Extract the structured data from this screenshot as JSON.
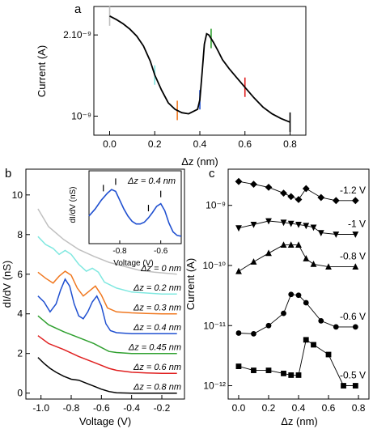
{
  "chart_data": [
    {
      "panel": "a",
      "type": "line",
      "xlabel": "Δz (nm)",
      "ylabel": "Current (A)",
      "xlim": [
        -0.07,
        0.87
      ],
      "ylim": [
        8.5e-10,
        2.55e-09
      ],
      "yscale": "log",
      "xticks": [
        0.0,
        0.2,
        0.4,
        0.6,
        0.8
      ],
      "xtick_labels": [
        "0.0",
        "0.2",
        "0.4",
        "0.6",
        "0.8"
      ],
      "yticks": [
        1e-09,
        2e-09
      ],
      "ytick_labels": [
        "10⁻⁹",
        "2.10⁻⁹"
      ],
      "series": [
        {
          "x": [
            0.0,
            0.03,
            0.06,
            0.09,
            0.12,
            0.15,
            0.18,
            0.2,
            0.23,
            0.26,
            0.29,
            0.32,
            0.35,
            0.37,
            0.39,
            0.4,
            0.41,
            0.42,
            0.43,
            0.44,
            0.46,
            0.48,
            0.5,
            0.53,
            0.56,
            0.6,
            0.64,
            0.68,
            0.72,
            0.76,
            0.8
          ],
          "values": [
            2.35e-09,
            2.28e-09,
            2.2e-09,
            2.1e-09,
            1.98e-09,
            1.82e-09,
            1.6e-09,
            1.42e-09,
            1.25e-09,
            1.12e-09,
            1.06e-09,
            1.03e-09,
            1.02e-09,
            1.04e-09,
            1.06e-09,
            1.15e-09,
            1.45e-09,
            1.85e-09,
            2.02e-09,
            2e-09,
            1.88e-09,
            1.75e-09,
            1.62e-09,
            1.5e-09,
            1.4e-09,
            1.28e-09,
            1.17e-09,
            1.08e-09,
            1.02e-09,
            9.8e-10,
            9.5e-10
          ]
        }
      ],
      "markers": [
        {
          "x": 0.0,
          "color": "#bdbdbd"
        },
        {
          "x": 0.2,
          "color": "#7fe3df"
        },
        {
          "x": 0.3,
          "color": "#f07820"
        },
        {
          "x": 0.4,
          "color": "#2050d0"
        },
        {
          "x": 0.45,
          "color": "#30a030"
        },
        {
          "x": 0.6,
          "color": "#e02020"
        },
        {
          "x": 0.8,
          "color": "#000000"
        }
      ]
    },
    {
      "panel": "b",
      "type": "line",
      "xlabel": "Voltage (V)",
      "ylabel": "dI/dV (nS)",
      "xlim": [
        -1.1,
        -0.05
      ],
      "ylim": [
        -0.3,
        11.3
      ],
      "xticks": [
        -1.0,
        -0.8,
        -0.6,
        -0.4,
        -0.2
      ],
      "xtick_labels": [
        "-1.0",
        "-0.8",
        "-0.6",
        "-0.4",
        "-0.2"
      ],
      "yticks": [
        0,
        2,
        4,
        6,
        8,
        10
      ],
      "ytick_labels": [
        "0",
        "2",
        "4",
        "6",
        "8",
        "10"
      ],
      "series": [
        {
          "name": "Δz = 0 nm",
          "color": "#c0c0c0",
          "x": [
            -1.02,
            -0.95,
            -0.85,
            -0.75,
            -0.65,
            -0.55,
            -0.45,
            -0.35,
            -0.25,
            -0.1
          ],
          "values": [
            9.3,
            8.4,
            7.75,
            7.25,
            6.9,
            6.6,
            6.4,
            6.2,
            6.1,
            6.0
          ]
        },
        {
          "name": "Δz = 0.2 nm",
          "color": "#80e8e0",
          "x": [
            -1.02,
            -0.97,
            -0.92,
            -0.88,
            -0.84,
            -0.8,
            -0.75,
            -0.7,
            -0.66,
            -0.62,
            -0.58,
            -0.5,
            -0.4,
            -0.3,
            -0.2,
            -0.1
          ],
          "values": [
            7.9,
            7.5,
            7.3,
            7.0,
            7.2,
            7.0,
            6.5,
            6.15,
            6.3,
            6.1,
            5.6,
            5.3,
            5.1,
            5.05,
            5.0,
            5.0
          ]
        },
        {
          "name": "Δz = 0.3 nm",
          "color": "#f07820",
          "x": [
            -1.02,
            -0.97,
            -0.92,
            -0.88,
            -0.84,
            -0.8,
            -0.76,
            -0.72,
            -0.68,
            -0.64,
            -0.6,
            -0.56,
            -0.5,
            -0.4,
            -0.3,
            -0.2,
            -0.1
          ],
          "values": [
            6.1,
            5.8,
            5.55,
            5.9,
            6.15,
            5.95,
            5.3,
            4.9,
            5.15,
            5.4,
            4.95,
            4.3,
            4.1,
            4.05,
            4.02,
            4.0,
            4.0
          ]
        },
        {
          "name": "Δz = 0.4 nm",
          "color": "#2050d0",
          "x": [
            -1.02,
            -0.98,
            -0.94,
            -0.9,
            -0.87,
            -0.84,
            -0.81,
            -0.78,
            -0.75,
            -0.72,
            -0.69,
            -0.66,
            -0.63,
            -0.6,
            -0.57,
            -0.54,
            -0.5,
            -0.4,
            -0.3,
            -0.2,
            -0.1
          ],
          "values": [
            4.9,
            4.6,
            4.1,
            4.5,
            5.2,
            5.75,
            5.4,
            4.5,
            3.9,
            3.75,
            4.1,
            4.6,
            4.9,
            4.4,
            3.5,
            3.15,
            3.05,
            3.0,
            3.0,
            3.0,
            3.0
          ]
        },
        {
          "name": "Δz = 0.45 nm",
          "color": "#30a030",
          "x": [
            -1.02,
            -0.95,
            -0.85,
            -0.75,
            -0.65,
            -0.6,
            -0.55,
            -0.5,
            -0.4,
            -0.3,
            -0.2,
            -0.1
          ],
          "values": [
            3.9,
            3.45,
            3.1,
            2.8,
            2.5,
            2.3,
            2.1,
            2.05,
            2.0,
            2.0,
            2.0,
            2.0
          ]
        },
        {
          "name": "Δz = 0.6 nm",
          "color": "#e02020",
          "x": [
            -1.02,
            -0.95,
            -0.85,
            -0.75,
            -0.65,
            -0.55,
            -0.5,
            -0.4,
            -0.3,
            -0.2,
            -0.1
          ],
          "values": [
            2.9,
            2.5,
            2.2,
            1.85,
            1.55,
            1.25,
            1.15,
            1.05,
            1.02,
            1.0,
            1.0
          ]
        },
        {
          "name": "Δz = 0.8 nm",
          "color": "#000000",
          "x": [
            -1.02,
            -0.98,
            -0.94,
            -0.9,
            -0.85,
            -0.8,
            -0.75,
            -0.7,
            -0.65,
            -0.6,
            -0.55,
            -0.5,
            -0.4,
            -0.3,
            -0.2,
            -0.1
          ],
          "values": [
            1.8,
            1.5,
            1.25,
            1.05,
            0.85,
            0.7,
            0.65,
            0.5,
            0.35,
            0.2,
            0.08,
            0.02,
            0.0,
            0.0,
            0.0,
            0.0
          ]
        }
      ],
      "inset": {
        "type": "line",
        "annotation": "Δz = 0.4 nm",
        "xlabel": "Voltage (V)",
        "ylabel": "dI/dV (nS)",
        "xlim": [
          -0.95,
          -0.5
        ],
        "xticks": [
          -0.8,
          -0.6
        ],
        "xtick_labels": [
          "-0.8",
          "-0.6"
        ],
        "color": "#2050d0",
        "x": [
          -0.95,
          -0.92,
          -0.89,
          -0.86,
          -0.84,
          -0.82,
          -0.8,
          -0.78,
          -0.76,
          -0.74,
          -0.72,
          -0.7,
          -0.68,
          -0.66,
          -0.64,
          -0.62,
          -0.6,
          -0.58,
          -0.56,
          -0.54,
          -0.52,
          -0.5
        ],
        "values": [
          4.2,
          4.6,
          5.1,
          5.5,
          5.7,
          5.6,
          5.1,
          4.6,
          4.2,
          3.9,
          3.75,
          3.75,
          3.85,
          4.1,
          4.4,
          4.75,
          4.9,
          4.5,
          3.8,
          3.3,
          3.1,
          3.05
        ],
        "peak_marks": [
          -0.88,
          -0.82,
          -0.66,
          -0.6
        ]
      }
    },
    {
      "panel": "c",
      "type": "scatter",
      "xlabel": "Δz (nm)",
      "ylabel": "Current (A)",
      "xlim": [
        -0.07,
        0.87
      ],
      "ylim": [
        6e-13,
        4e-09
      ],
      "yscale": "log",
      "xticks": [
        0.0,
        0.2,
        0.4,
        0.6,
        0.8
      ],
      "xtick_labels": [
        "0.0",
        "0.2",
        "0.4",
        "0.6",
        "0.8"
      ],
      "yticks": [
        1e-12,
        1e-11,
        1e-10,
        1e-09
      ],
      "ytick_labels": [
        "10⁻¹²",
        "10⁻¹¹",
        "10⁻¹⁰",
        "10⁻⁹"
      ],
      "series": [
        {
          "name": "-1.2 V",
          "marker": "diamond",
          "x": [
            0.0,
            0.1,
            0.2,
            0.3,
            0.35,
            0.4,
            0.45,
            0.55,
            0.65,
            0.78
          ],
          "values": [
            2.5e-09,
            2.25e-09,
            2e-09,
            1.6e-09,
            1.4e-09,
            1.25e-09,
            1.9e-09,
            1.35e-09,
            1.2e-09,
            1.2e-09
          ]
        },
        {
          "name": "-1 V",
          "marker": "triangle-down",
          "x": [
            0.0,
            0.1,
            0.2,
            0.3,
            0.35,
            0.4,
            0.45,
            0.5,
            0.55,
            0.65,
            0.78
          ],
          "values": [
            4.2e-10,
            4.8e-10,
            5.5e-10,
            5.2e-10,
            5e-10,
            4.8e-10,
            4.6e-10,
            4.3e-10,
            3.5e-10,
            3.3e-10,
            3.3e-10
          ]
        },
        {
          "name": "-0.8 V",
          "marker": "triangle-up",
          "x": [
            0.0,
            0.1,
            0.2,
            0.3,
            0.35,
            0.4,
            0.45,
            0.5,
            0.6,
            0.78
          ],
          "values": [
            8e-11,
            1.15e-10,
            1.6e-10,
            2.2e-10,
            2.2e-10,
            2.2e-10,
            1.3e-10,
            1.05e-10,
            9.5e-11,
            9.5e-11
          ]
        },
        {
          "name": "-0.6 V",
          "marker": "circle",
          "x": [
            0.0,
            0.1,
            0.2,
            0.3,
            0.35,
            0.4,
            0.45,
            0.55,
            0.65,
            0.78
          ],
          "values": [
            7.5e-12,
            7.3e-12,
            1e-11,
            1.6e-11,
            3.3e-11,
            3.2e-11,
            2.4e-11,
            1.2e-11,
            9.5e-12,
            9.5e-12
          ]
        },
        {
          "name": "-0.5 V",
          "marker": "square",
          "x": [
            0.0,
            0.1,
            0.2,
            0.3,
            0.35,
            0.4,
            0.45,
            0.5,
            0.6,
            0.7,
            0.78
          ],
          "values": [
            2.1e-12,
            1.8e-12,
            1.8e-12,
            1.6e-12,
            1.5e-12,
            1.5e-12,
            5.8e-12,
            4.8e-12,
            3.3e-12,
            1e-12,
            1e-12
          ]
        }
      ]
    }
  ]
}
